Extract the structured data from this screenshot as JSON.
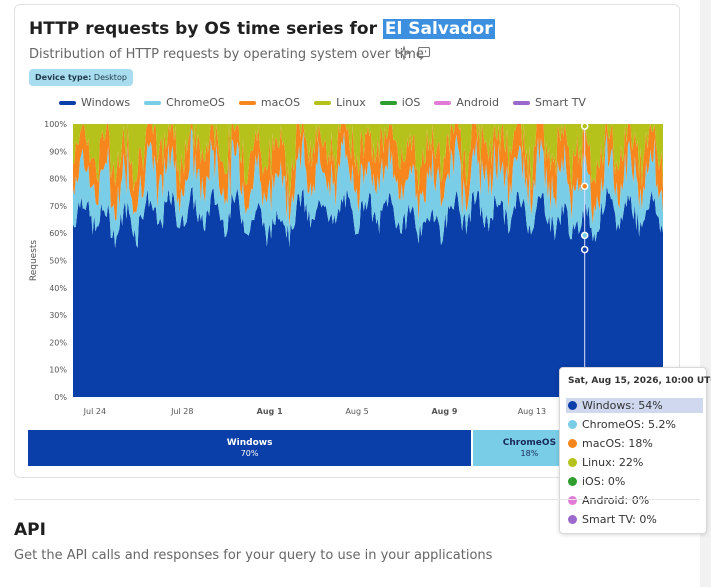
{
  "title_prefix": "HTTP requests by OS time series for",
  "title_location": "El Salvador",
  "subtitle": "Distribution of HTTP requests by operating system over time",
  "filter": {
    "label": "Device type:",
    "value": "Desktop"
  },
  "colors": {
    "Windows": "#0a3ea8",
    "ChromeOS": "#79cde6",
    "macOS": "#f7861c",
    "Linux": "#b5c21b",
    "iOS": "#2e9e2e",
    "Android": "#e27ad8",
    "Smart TV": "#9b68cc"
  },
  "chart_data": {
    "type": "area",
    "stacked": true,
    "normalized": true,
    "ylabel": "Requests",
    "y_ticks": [
      "0%",
      "10%",
      "20%",
      "30%",
      "40%",
      "50%",
      "60%",
      "70%",
      "80%",
      "90%",
      "100%"
    ],
    "x_ticks": [
      {
        "label": "Jul 24",
        "bold": false
      },
      {
        "label": "Jul 28",
        "bold": false
      },
      {
        "label": "Aug 1",
        "bold": true
      },
      {
        "label": "Aug 5",
        "bold": false
      },
      {
        "label": "Aug 9",
        "bold": true
      },
      {
        "label": "Aug 13",
        "bold": false
      }
    ],
    "x_range": [
      "2026-07-23",
      "2026-08-19"
    ],
    "series": [
      {
        "name": "Windows",
        "base_share": 70
      },
      {
        "name": "ChromeOS",
        "base_share": 14
      },
      {
        "name": "macOS",
        "base_share": 12
      },
      {
        "name": "Linux",
        "base_share": 4
      },
      {
        "name": "iOS",
        "base_share": 0
      },
      {
        "name": "Android",
        "base_share": 0
      },
      {
        "name": "Smart TV",
        "base_share": 0
      }
    ],
    "hover": {
      "date": "2026-08-15 10:00",
      "values": {
        "Windows": 54,
        "ChromeOS": 5.2,
        "macOS": 18,
        "Linux": 22,
        "iOS": 0,
        "Android": 0,
        "Smart TV": 0
      }
    }
  },
  "summary": [
    {
      "name": "Windows",
      "label": "70%",
      "share": 70
    },
    {
      "name": "ChromeOS",
      "label": "18%",
      "share": 18
    },
    {
      "name": "macOS",
      "label": "",
      "share": 10
    },
    {
      "name": "Linux",
      "label": "",
      "share": 2
    }
  ],
  "tooltip": {
    "title": "Sat, Aug 15, 2026, 10:00 UTC",
    "rows": [
      {
        "name": "Windows",
        "text": "Windows: 54%"
      },
      {
        "name": "ChromeOS",
        "text": "ChromeOS: 5.2%"
      },
      {
        "name": "macOS",
        "text": "macOS: 18%"
      },
      {
        "name": "Linux",
        "text": "Linux: 22%"
      },
      {
        "name": "iOS",
        "text": "iOS: 0%"
      },
      {
        "name": "Android",
        "text": "Android: 0%"
      },
      {
        "name": "Smart TV",
        "text": "Smart TV: 0%"
      }
    ]
  },
  "api": {
    "title": "API",
    "description": "Get the API calls and responses for your query to use in your applications"
  }
}
